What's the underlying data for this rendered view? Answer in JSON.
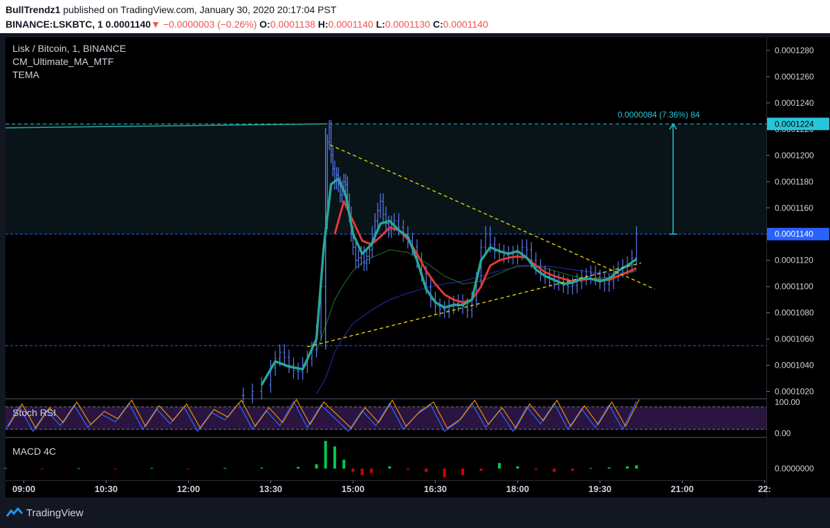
{
  "header": {
    "author": "BullTrendz1",
    "published": "published on TradingView.com, January 30, 2020 20:17:04 PST",
    "symbol": "BINANCE:LSKBTC, 1",
    "last": "0.0001140",
    "change_arrow": "▼",
    "change": "−0.0000003 (−0.26%)",
    "o_label": "O:",
    "o_value": "0.0001138",
    "h_label": "H:",
    "h_value": "0.0001140",
    "l_label": "L:",
    "l_value": "0.0001130",
    "c_label": "C:",
    "c_value": "0.0001140"
  },
  "legend": {
    "title": "Lisk / Bitcoin, 1, BINANCE",
    "ind1": "CM_Ultimate_MA_MTF",
    "ind2": "TEMA"
  },
  "stoch": {
    "label": "Stoch RSI",
    "top_tick": "100.00",
    "bottom_tick": "0.00"
  },
  "macd": {
    "label": "MACD 4C",
    "zero_tick": "0.0000000"
  },
  "measure": {
    "text": "0.0000084 (7.36%) 84"
  },
  "price_tags": {
    "upper": "0.0001224",
    "current": "0.0001140"
  },
  "footer": {
    "brand": "TradingView"
  },
  "colors": {
    "up": "#26a69a",
    "down": "#ef5350",
    "bar": "#2962ff",
    "tema": "#26a69a",
    "ma_red": "#e53935",
    "measure": "#26c6da"
  },
  "chart_data": {
    "type": "line",
    "title": "Lisk / Bitcoin, 1, BINANCE",
    "y_ticks": [
      "0.0001280",
      "0.0001260",
      "0.0001240",
      "0.0001220",
      "0.0001200",
      "0.0001180",
      "0.0001160",
      "0.0001140",
      "0.0001120",
      "0.0001100",
      "0.0001080",
      "0.0001060",
      "0.0001040",
      "0.0001020"
    ],
    "ylim": [
      0.0001015,
      0.000129
    ],
    "x_ticks": [
      "09:00",
      "10:30",
      "12:00",
      "13:30",
      "15:00",
      "16:30",
      "18:00",
      "19:30",
      "21:00",
      "22:"
    ],
    "x_tick_minutes": [
      540,
      630,
      720,
      810,
      900,
      990,
      1080,
      1170,
      1260,
      1350
    ],
    "xlim": [
      520,
      1352
    ],
    "price_series": {
      "minutes": [
        780,
        790,
        800,
        810,
        815,
        820,
        825,
        830,
        835,
        840,
        845,
        850,
        855,
        860,
        865,
        870,
        872,
        874,
        876,
        878,
        880,
        882,
        884,
        886,
        888,
        890,
        892,
        894,
        896,
        898,
        900,
        903,
        906,
        909,
        912,
        915,
        918,
        921,
        924,
        927,
        930,
        933,
        936,
        939,
        942,
        945,
        950,
        955,
        960,
        965,
        970,
        975,
        980,
        985,
        990,
        995,
        1000,
        1005,
        1010,
        1015,
        1020,
        1025,
        1030,
        1035,
        1040,
        1045,
        1050,
        1055,
        1060,
        1065,
        1070,
        1075,
        1080,
        1085,
        1090,
        1095,
        1100,
        1105,
        1110,
        1115,
        1120,
        1125,
        1130,
        1135,
        1140,
        1145,
        1150,
        1155,
        1160,
        1165,
        1170,
        1175,
        1180,
        1185,
        1190,
        1195,
        1200,
        1205,
        1210
      ],
      "values": [
        0.0001017,
        0.000102,
        0.0001025,
        0.0001038,
        0.0001045,
        0.000105,
        0.0001046,
        0.000104,
        0.0001036,
        0.0001035,
        0.000104,
        0.0001045,
        0.0001052,
        0.0001065,
        0.00011,
        0.000115,
        0.000121,
        0.0001221,
        0.00012,
        0.000119,
        0.000118,
        0.0001185,
        0.0001178,
        0.000117,
        0.0001175,
        0.000118,
        0.0001178,
        0.0001165,
        0.0001155,
        0.000114,
        0.000113,
        0.000112,
        0.0001122,
        0.0001125,
        0.0001118,
        0.0001123,
        0.0001128,
        0.000114,
        0.000115,
        0.0001158,
        0.0001165,
        0.0001155,
        0.0001148,
        0.0001143,
        0.0001148,
        0.000115,
        0.0001145,
        0.000114,
        0.0001135,
        0.000113,
        0.000112,
        0.000111,
        0.00011,
        0.000109,
        0.0001085,
        0.0001083,
        0.0001082,
        0.0001085,
        0.0001087,
        0.0001088,
        0.0001085,
        0.0001082,
        0.000109,
        0.0001105,
        0.000113,
        0.000114,
        0.0001132,
        0.0001127,
        0.0001126,
        0.0001124,
        0.0001125,
        0.0001123,
        0.0001126,
        0.000113,
        0.0001128,
        0.000112,
        0.0001115,
        0.000111,
        0.0001108,
        0.0001106,
        0.0001104,
        0.0001103,
        0.0001101,
        0.00011,
        0.0001101,
        0.0001104,
        0.0001107,
        0.0001108,
        0.000111,
        0.0001107,
        0.0001104,
        0.0001102,
        0.0001104,
        0.000111,
        0.0001113,
        0.0001115,
        0.0001117,
        0.0001122,
        0.000114
      ]
    },
    "tema_series": {
      "minutes": [
        800,
        815,
        830,
        845,
        860,
        868,
        876,
        884,
        892,
        900,
        910,
        920,
        930,
        940,
        950,
        960,
        970,
        980,
        990,
        1000,
        1010,
        1020,
        1030,
        1040,
        1050,
        1060,
        1070,
        1080,
        1090,
        1100,
        1110,
        1120,
        1130,
        1140,
        1150,
        1160,
        1170,
        1180,
        1190,
        1200,
        1210
      ],
      "values": [
        0.0001025,
        0.0001043,
        0.0001039,
        0.0001037,
        0.000106,
        0.000113,
        0.0001178,
        0.0001182,
        0.000117,
        0.000114,
        0.0001125,
        0.0001132,
        0.0001148,
        0.000115,
        0.0001143,
        0.0001138,
        0.000112,
        0.0001098,
        0.0001088,
        0.0001084,
        0.0001086,
        0.0001086,
        0.000109,
        0.000112,
        0.000113,
        0.0001127,
        0.0001125,
        0.0001127,
        0.0001122,
        0.0001113,
        0.0001108,
        0.0001105,
        0.0001102,
        0.0001103,
        0.0001106,
        0.0001106,
        0.0001104,
        0.0001106,
        0.0001112,
        0.0001116,
        0.0001121
      ]
    },
    "ma_red": {
      "minutes": [
        880,
        890,
        900,
        910,
        920,
        930,
        940,
        950,
        960,
        970,
        980,
        990,
        1000,
        1010,
        1020,
        1030,
        1040,
        1050,
        1060,
        1070,
        1080,
        1090,
        1100,
        1110,
        1120,
        1130,
        1140,
        1150,
        1160,
        1170,
        1180,
        1190,
        1200,
        1210
      ],
      "values": [
        0.000114,
        0.0001165,
        0.000115,
        0.0001135,
        0.0001132,
        0.0001138,
        0.0001145,
        0.0001143,
        0.0001136,
        0.0001125,
        0.0001112,
        0.0001102,
        0.0001094,
        0.000109,
        0.0001088,
        0.000109,
        0.00011,
        0.0001116,
        0.000112,
        0.0001122,
        0.0001123,
        0.0001122,
        0.0001116,
        0.0001111,
        0.0001108,
        0.0001106,
        0.0001104,
        0.0001105,
        0.0001106,
        0.0001105,
        0.0001105,
        0.0001108,
        0.0001111,
        0.0001114
      ]
    },
    "ma_green": {
      "minutes": [
        860,
        870,
        880,
        890,
        900,
        910,
        920,
        930,
        940,
        960,
        980,
        1000,
        1020,
        1040,
        1060,
        1080,
        1100,
        1120,
        1140,
        1160,
        1180,
        1200,
        1210
      ],
      "values": [
        0.000105,
        0.000107,
        0.000109,
        0.0001102,
        0.0001112,
        0.0001118,
        0.0001122,
        0.0001125,
        0.0001128,
        0.0001126,
        0.0001118,
        0.0001108,
        0.0001102,
        0.0001104,
        0.000111,
        0.0001116,
        0.0001116,
        0.0001112,
        0.0001108,
        0.0001106,
        0.0001107,
        0.000111,
        0.0001112
      ]
    },
    "ma_blue": {
      "minutes": [
        860,
        870,
        880,
        890,
        900,
        920,
        940,
        960,
        980,
        1000,
        1020,
        1040,
        1060,
        1080,
        1100,
        1120,
        1140,
        1160,
        1180,
        1200,
        1210
      ],
      "values": [
        0.0001018,
        0.000103,
        0.000105,
        0.0001062,
        0.0001072,
        0.0001082,
        0.000109,
        0.0001095,
        0.0001099,
        0.0001102,
        0.0001104,
        0.0001108,
        0.0001112,
        0.0001115,
        0.0001116,
        0.0001115,
        0.0001113,
        0.0001111,
        0.000111,
        0.0001111,
        0.0001112
      ]
    },
    "triangle_upper": {
      "minutes": [
        875,
        1230
      ],
      "values": [
        0.0001208,
        0.0001098
      ]
    },
    "triangle_lower": {
      "minutes": [
        850,
        1215
      ],
      "values": [
        0.0001054,
        0.0001118
      ]
    },
    "h_lines": [
      {
        "name": "resistance",
        "value": 0.0001224
      },
      {
        "name": "current",
        "value": 0.000114
      },
      {
        "name": "support",
        "value": 0.0001055
      }
    ],
    "resistance_trend": {
      "minutes": [
        520,
        872
      ],
      "values": [
        0.0001221,
        0.0001224
      ]
    },
    "measure_range": {
      "minute": 1250,
      "from": 0.000114,
      "to": 0.0001224
    },
    "stoch_series": {
      "minutes": [
        520,
        535,
        550,
        565,
        580,
        595,
        610,
        625,
        640,
        655,
        670,
        685,
        700,
        715,
        730,
        745,
        760,
        775,
        790,
        805,
        820,
        835,
        850,
        865,
        880,
        895,
        910,
        925,
        940,
        955,
        970,
        985,
        1000,
        1015,
        1030,
        1045,
        1060,
        1075,
        1090,
        1105,
        1120,
        1135,
        1150,
        1165,
        1180,
        1195,
        1210
      ],
      "values": [
        20,
        80,
        15,
        70,
        30,
        85,
        25,
        60,
        40,
        90,
        20,
        75,
        35,
        80,
        15,
        65,
        45,
        90,
        20,
        70,
        30,
        95,
        25,
        85,
        50,
        15,
        70,
        30,
        90,
        20,
        60,
        85,
        15,
        40,
        90,
        25,
        70,
        15,
        80,
        35,
        90,
        20,
        75,
        25,
        85,
        20,
        95
      ]
    },
    "macd_hist": {
      "minutes": [
        520,
        560,
        600,
        640,
        680,
        720,
        760,
        800,
        840,
        860,
        870,
        880,
        890,
        900,
        910,
        920,
        940,
        960,
        980,
        1000,
        1020,
        1040,
        1060,
        1080,
        1100,
        1120,
        1140,
        1160,
        1180,
        1200,
        1210
      ],
      "values": [
        0.5,
        -0.5,
        0.4,
        -0.4,
        0.6,
        -0.5,
        0.5,
        0.8,
        1.5,
        4,
        25,
        20,
        8,
        -3,
        -6,
        -4,
        2,
        -1,
        -3,
        -8,
        -6,
        -2,
        5,
        2,
        -1,
        -3,
        -2,
        0.5,
        1,
        2,
        3
      ]
    }
  }
}
